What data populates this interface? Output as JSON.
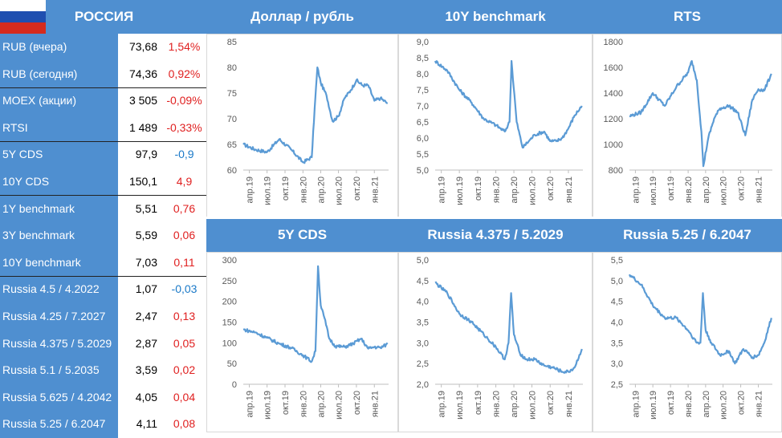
{
  "table": {
    "title": "РОССИЯ",
    "rows": [
      {
        "label": "RUB (вчера)",
        "value": "73,68",
        "change": "1,54%",
        "sign": "pos"
      },
      {
        "label": "RUB (сегодня)",
        "value": "74,36",
        "change": "0,92%",
        "sign": "pos"
      },
      {
        "label": "MOEX (акции)",
        "value": "3 505",
        "change": "-0,09%",
        "sign": "pos"
      },
      {
        "label": "RTSI",
        "value": "1 489",
        "change": "-0,33%",
        "sign": "pos"
      },
      {
        "label": "5Y CDS",
        "value": "97,9",
        "change": "-0,9",
        "sign": "neg"
      },
      {
        "label": "10Y CDS",
        "value": "150,1",
        "change": "4,9",
        "sign": "pos"
      },
      {
        "label": "1Y benchmark",
        "value": "5,51",
        "change": "0,76",
        "sign": "pos"
      },
      {
        "label": "3Y benchmark",
        "value": "5,59",
        "change": "0,06",
        "sign": "pos"
      },
      {
        "label": "10Y benchmark",
        "value": "7,03",
        "change": "0,11",
        "sign": "pos"
      },
      {
        "label": "Russia 4.5 / 4.2022",
        "value": "1,07",
        "change": "-0,03",
        "sign": "neg"
      },
      {
        "label": "Russia 4.25 / 7.2027",
        "value": "2,47",
        "change": "0,13",
        "sign": "pos"
      },
      {
        "label": "Russia 4.375 / 5.2029",
        "value": "2,87",
        "change": "0,05",
        "sign": "pos"
      },
      {
        "label": "Russia 5.1 / 5.2035",
        "value": "3,59",
        "change": "0,02",
        "sign": "pos"
      },
      {
        "label": "Russia 5.625 / 4.2042",
        "value": "4,05",
        "change": "0,04",
        "sign": "pos"
      },
      {
        "label": "Russia 5.25 / 6.2047",
        "value": "4,11",
        "change": "0,08",
        "sign": "pos"
      }
    ],
    "separators_after": [
      1,
      3,
      5,
      8
    ]
  },
  "colors": {
    "header": "#4f8fd0",
    "line": "#5b9bd5",
    "pos": "#e02020",
    "neg": "#1a79c8"
  },
  "chart_data": [
    {
      "type": "line",
      "title": "Доллар / рубль",
      "ylim": [
        60,
        85
      ],
      "yticks": [
        60,
        65,
        70,
        75,
        80,
        85
      ],
      "xticks": [
        "апр.19",
        "июл.19",
        "окт.19",
        "янв.20",
        "апр.20",
        "июл.20",
        "окт.20",
        "янв.21"
      ],
      "x": [
        "2019-03-01",
        "2019-05-01",
        "2019-07-01",
        "2019-09-01",
        "2019-11-01",
        "2020-01-01",
        "2020-02-15",
        "2020-03-01",
        "2020-03-15",
        "2020-04-01",
        "2020-05-01",
        "2020-06-01",
        "2020-07-01",
        "2020-08-01",
        "2020-09-01",
        "2020-10-01",
        "2020-11-01",
        "2020-12-01",
        "2021-01-01",
        "2021-02-01",
        "2021-03-10"
      ],
      "y": [
        65.0,
        64.0,
        63.5,
        66.0,
        64.0,
        61.5,
        62.5,
        72.0,
        80.0,
        77.0,
        74.5,
        69.5,
        70.5,
        74.0,
        75.5,
        77.5,
        76.5,
        76.5,
        73.5,
        74.0,
        73.0
      ]
    },
    {
      "type": "line",
      "title": "10Y benchmark",
      "ylim": [
        5.0,
        9.0
      ],
      "yticks": [
        5.0,
        5.5,
        6.0,
        6.5,
        7.0,
        7.5,
        8.0,
        8.5,
        9.0
      ],
      "xticks": [
        "апр.19",
        "июл.19",
        "окт.19",
        "янв.20",
        "апр.20",
        "июл.20",
        "окт.20",
        "янв.21"
      ],
      "x": [
        "2019-03-01",
        "2019-05-01",
        "2019-07-01",
        "2019-09-01",
        "2019-11-01",
        "2020-01-01",
        "2020-02-15",
        "2020-03-10",
        "2020-03-20",
        "2020-04-15",
        "2020-05-15",
        "2020-06-15",
        "2020-07-15",
        "2020-09-01",
        "2020-10-01",
        "2020-11-01",
        "2020-12-01",
        "2021-01-01",
        "2021-02-01",
        "2021-03-10"
      ],
      "y": [
        8.4,
        8.1,
        7.5,
        7.1,
        6.6,
        6.4,
        6.2,
        6.5,
        8.4,
        6.5,
        5.7,
        5.9,
        6.1,
        6.2,
        5.9,
        5.9,
        6.0,
        6.3,
        6.7,
        7.0
      ]
    },
    {
      "type": "line",
      "title": "RTS",
      "ylim": [
        800,
        1800
      ],
      "yticks": [
        800,
        1000,
        1200,
        1400,
        1600,
        1800
      ],
      "xticks": [
        "апр.19",
        "июл.19",
        "окт.19",
        "янв.20",
        "апр.20",
        "июл.20",
        "окт.20",
        "янв.21"
      ],
      "x": [
        "2019-03-01",
        "2019-05-01",
        "2019-07-01",
        "2019-09-01",
        "2019-11-01",
        "2020-01-01",
        "2020-01-20",
        "2020-02-15",
        "2020-03-10",
        "2020-03-20",
        "2020-04-15",
        "2020-05-15",
        "2020-06-15",
        "2020-08-01",
        "2020-09-15",
        "2020-10-25",
        "2020-12-01",
        "2021-01-01",
        "2021-02-01",
        "2021-03-10"
      ],
      "y": [
        1220,
        1250,
        1400,
        1300,
        1450,
        1560,
        1650,
        1500,
        1100,
        830,
        1050,
        1200,
        1280,
        1300,
        1250,
        1070,
        1350,
        1430,
        1420,
        1550
      ]
    },
    {
      "type": "line",
      "title": "5Y CDS",
      "ylim": [
        0,
        300
      ],
      "yticks": [
        0,
        50,
        100,
        150,
        200,
        250,
        300
      ],
      "xticks": [
        "апр.19",
        "июл.19",
        "окт.19",
        "янв.20",
        "апр.20",
        "июл.20",
        "окт.20",
        "янв.21"
      ],
      "x": [
        "2019-03-01",
        "2019-05-01",
        "2019-07-01",
        "2019-09-01",
        "2019-11-01",
        "2020-01-01",
        "2020-02-15",
        "2020-03-05",
        "2020-03-18",
        "2020-04-01",
        "2020-04-20",
        "2020-05-15",
        "2020-06-15",
        "2020-08-01",
        "2020-09-15",
        "2020-10-25",
        "2020-12-01",
        "2021-01-01",
        "2021-02-01",
        "2021-03-10"
      ],
      "y": [
        132,
        125,
        112,
        98,
        88,
        70,
        55,
        80,
        285,
        190,
        160,
        110,
        92,
        90,
        98,
        110,
        86,
        90,
        88,
        97
      ]
    },
    {
      "type": "line",
      "title": "Russia 4.375 / 5.2029",
      "ylim": [
        2.0,
        5.0
      ],
      "yticks": [
        2.0,
        2.5,
        3.0,
        3.5,
        4.0,
        4.5,
        5.0
      ],
      "xticks": [
        "апр.19",
        "июл.19",
        "окт.19",
        "янв.20",
        "апр.20",
        "июл.20",
        "окт.20",
        "янв.21"
      ],
      "x": [
        "2019-03-01",
        "2019-05-01",
        "2019-07-01",
        "2019-09-01",
        "2019-11-01",
        "2020-01-01",
        "2020-02-15",
        "2020-03-05",
        "2020-03-18",
        "2020-04-01",
        "2020-05-01",
        "2020-06-01",
        "2020-07-15",
        "2020-09-01",
        "2020-10-15",
        "2020-12-01",
        "2021-01-01",
        "2021-02-01",
        "2021-03-10"
      ],
      "y": [
        4.45,
        4.2,
        3.7,
        3.5,
        3.2,
        2.9,
        2.6,
        3.0,
        4.2,
        3.2,
        2.75,
        2.6,
        2.6,
        2.45,
        2.4,
        2.3,
        2.3,
        2.4,
        2.85
      ]
    },
    {
      "type": "line",
      "title": "Russia 5.25 / 6.2047",
      "ylim": [
        2.5,
        5.5
      ],
      "yticks": [
        2.5,
        3.0,
        3.5,
        4.0,
        4.5,
        5.0,
        5.5
      ],
      "xticks": [
        "апр.19",
        "июл.19",
        "окт.19",
        "янв.20",
        "апр.20",
        "июл.20",
        "окт.20",
        "янв.21"
      ],
      "x": [
        "2019-03-01",
        "2019-05-01",
        "2019-07-01",
        "2019-09-01",
        "2019-11-01",
        "2020-01-01",
        "2020-02-15",
        "2020-03-05",
        "2020-03-18",
        "2020-04-01",
        "2020-05-01",
        "2020-06-15",
        "2020-08-01",
        "2020-09-01",
        "2020-10-15",
        "2020-12-01",
        "2021-01-01",
        "2021-02-01",
        "2021-03-10"
      ],
      "y": [
        5.15,
        4.9,
        4.4,
        4.1,
        4.1,
        3.8,
        3.5,
        3.5,
        4.7,
        3.8,
        3.5,
        3.2,
        3.3,
        3.0,
        3.35,
        3.15,
        3.2,
        3.5,
        4.1
      ]
    }
  ]
}
